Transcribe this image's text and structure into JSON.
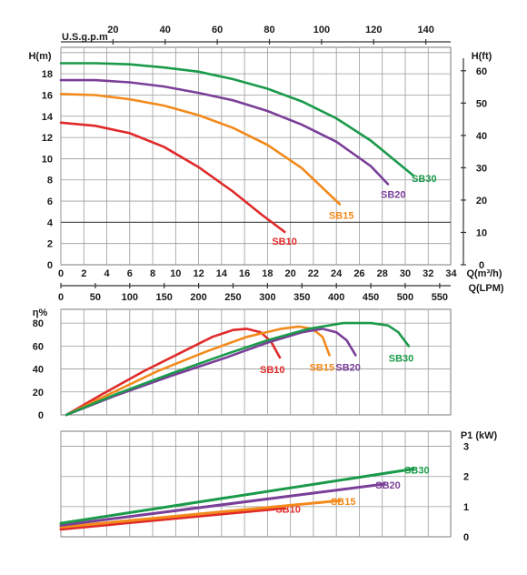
{
  "chart_data": [
    {
      "type": "line",
      "title": "",
      "x_axes": [
        {
          "label": "U.S.g.p.m",
          "ticks": [
            20,
            40,
            60,
            80,
            100,
            120,
            140
          ],
          "unit_in_lpm": 3.785
        },
        {
          "label": "Q(m³/h)",
          "ticks": [
            0,
            2,
            4,
            6,
            8,
            10,
            12,
            14,
            16,
            18,
            20,
            22,
            24,
            26,
            28,
            30,
            32,
            34
          ],
          "unit_in_lpm": 16.667
        },
        {
          "label": "Q(LPM)",
          "ticks": [
            0,
            50,
            100,
            150,
            200,
            250,
            300,
            350,
            400,
            450,
            500,
            550
          ],
          "unit_in_lpm": 1
        }
      ],
      "y_axes": [
        {
          "label": "H(m)",
          "ticks": [
            0,
            2,
            4,
            6,
            8,
            10,
            12,
            14,
            16,
            18
          ],
          "ylim": [
            0,
            20.5
          ]
        },
        {
          "label": "H(ft)",
          "ticks": [
            0,
            10,
            20,
            30,
            40,
            50,
            60
          ],
          "unit_in_m": 0.3048
        }
      ],
      "xlim_lpm": [
        0,
        566
      ],
      "grid": true,
      "series": [
        {
          "name": "SB10",
          "color": "#e02a2a",
          "x_lpm": [
            0,
            50,
            100,
            150,
            200,
            250,
            290,
            325
          ],
          "y": [
            13.4,
            13.1,
            12.4,
            11.1,
            9.2,
            6.9,
            4.8,
            3.1
          ]
        },
        {
          "name": "SB15",
          "color": "#f28a1c",
          "x_lpm": [
            0,
            50,
            100,
            150,
            200,
            250,
            300,
            350,
            405
          ],
          "y": [
            16.1,
            16.0,
            15.6,
            15.0,
            14.1,
            12.9,
            11.3,
            9.1,
            5.7
          ]
        },
        {
          "name": "SB20",
          "color": "#7a3f98",
          "x_lpm": [
            0,
            50,
            100,
            150,
            200,
            250,
            300,
            350,
            400,
            450,
            475
          ],
          "y": [
            17.4,
            17.4,
            17.2,
            16.8,
            16.2,
            15.5,
            14.5,
            13.2,
            11.6,
            9.3,
            7.6
          ]
        },
        {
          "name": "SB30",
          "color": "#1a9a4a",
          "x_lpm": [
            0,
            50,
            100,
            150,
            200,
            250,
            300,
            350,
            400,
            450,
            512
          ],
          "y": [
            19.0,
            19.0,
            18.9,
            18.6,
            18.2,
            17.5,
            16.6,
            15.4,
            13.8,
            11.7,
            8.4
          ]
        }
      ]
    },
    {
      "type": "line",
      "title": "",
      "y_axes": [
        {
          "label": "η%",
          "ticks": [
            0,
            20,
            40,
            60,
            80
          ],
          "ylim": [
            0,
            92
          ]
        }
      ],
      "xlim_lpm": [
        0,
        566
      ],
      "grid": true,
      "series": [
        {
          "name": "SB10",
          "color": "#e02a2a",
          "x_lpm": [
            8,
            60,
            120,
            180,
            220,
            250,
            270,
            290,
            305,
            318
          ],
          "y": [
            0,
            18,
            38,
            56,
            68,
            74,
            75,
            72,
            64,
            50
          ]
        },
        {
          "name": "SB15",
          "color": "#f28a1c",
          "x_lpm": [
            8,
            70,
            140,
            210,
            270,
            320,
            345,
            365,
            380,
            390
          ],
          "y": [
            0,
            18,
            38,
            55,
            68,
            75,
            77,
            75,
            68,
            52
          ]
        },
        {
          "name": "SB20",
          "color": "#7a3f98",
          "x_lpm": [
            8,
            80,
            160,
            240,
            300,
            350,
            380,
            400,
            415,
            428
          ],
          "y": [
            0,
            17,
            34,
            50,
            63,
            72,
            75,
            72,
            65,
            52
          ]
        },
        {
          "name": "SB30",
          "color": "#1a9a4a",
          "x_lpm": [
            8,
            80,
            160,
            240,
            300,
            360,
            410,
            450,
            475,
            490,
            505
          ],
          "y": [
            0,
            18,
            36,
            53,
            65,
            75,
            80,
            80,
            78,
            72,
            60
          ]
        }
      ]
    },
    {
      "type": "line",
      "title": "",
      "y_axes": [
        {
          "label": "P1 (kW)",
          "ticks": [
            0,
            1,
            2,
            3
          ],
          "ylim": [
            0,
            3.5
          ],
          "side": "right"
        }
      ],
      "xlim_lpm": [
        0,
        566
      ],
      "grid": true,
      "series": [
        {
          "name": "SB10",
          "color": "#e02a2a",
          "x_lpm": [
            0,
            325
          ],
          "y": [
            0.25,
            0.95
          ]
        },
        {
          "name": "SB15",
          "color": "#f28a1c",
          "x_lpm": [
            0,
            405
          ],
          "y": [
            0.32,
            1.2
          ]
        },
        {
          "name": "SB20",
          "color": "#7a3f98",
          "x_lpm": [
            0,
            470
          ],
          "y": [
            0.38,
            1.75
          ]
        },
        {
          "name": "SB30",
          "color": "#1a9a4a",
          "x_lpm": [
            0,
            512
          ],
          "y": [
            0.45,
            2.25
          ]
        }
      ]
    }
  ]
}
